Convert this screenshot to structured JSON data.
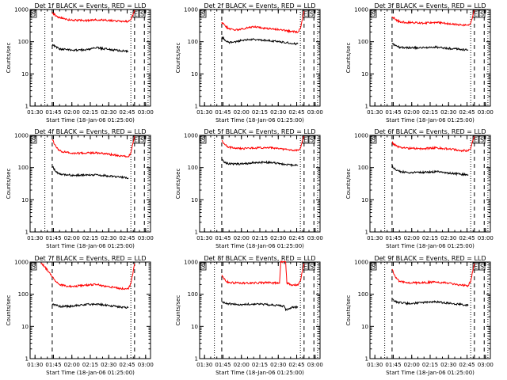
{
  "figure": {
    "panels_per_row": 3
  },
  "colors": {
    "events": "#000000",
    "lld": "#ff0000",
    "axes": "#000000",
    "background": "#ffffff"
  },
  "chart_data": [
    {
      "type": "line",
      "title": "Det 1f BLACK = Events, RED = LLD",
      "xlabel": "Start Time (18-Jan-06 01:25:00)",
      "ylabel": "Counts/sec",
      "yscale": "log",
      "ylim": [
        1,
        1000
      ],
      "yticks": [
        "1",
        "10",
        "100",
        "1000"
      ],
      "xlim": [
        "01:26",
        "03:04"
      ],
      "xticks": [
        "01:30",
        "01:45",
        "02:00",
        "02:15",
        "02:30",
        "02:45",
        "03:00"
      ],
      "flags": [
        "S",
        "E",
        "S"
      ],
      "markers": [
        {
          "time": "01:38",
          "style": "dotted"
        },
        {
          "time": "01:44",
          "style": "dashed"
        },
        {
          "time": "02:48",
          "style": "dotted"
        },
        {
          "time": "02:51",
          "style": "dashed"
        },
        {
          "time": "02:59",
          "style": "dashed"
        },
        {
          "time": "03:02",
          "style": "dotted"
        }
      ],
      "series": [
        {
          "legend": "RED = LLD",
          "x": [
            "01:44",
            "01:47",
            "01:50",
            "01:55",
            "02:00",
            "02:10",
            "02:20",
            "02:30",
            "02:40",
            "02:46",
            "02:48",
            "02:50",
            "02:51"
          ],
          "y": [
            800,
            630,
            560,
            500,
            470,
            450,
            480,
            460,
            430,
            420,
            480,
            750,
            950
          ]
        },
        {
          "legend": "BLACK = Events",
          "x": [
            "01:44",
            "01:47",
            "01:50",
            "01:55",
            "02:00",
            "02:10",
            "02:20",
            "02:30",
            "02:40",
            "02:46"
          ],
          "y": [
            80,
            70,
            60,
            58,
            55,
            55,
            65,
            58,
            52,
            50
          ]
        }
      ]
    },
    {
      "type": "line",
      "title": "Det 2f BLACK = Events, RED = LLD",
      "xlabel": "Start Time (18-Jan-06 01:25:00)",
      "ylabel": "Counts/sec",
      "yscale": "log",
      "ylim": [
        1,
        1000
      ],
      "yticks": [
        "1",
        "10",
        "100",
        "1000"
      ],
      "xlim": [
        "01:26",
        "03:04"
      ],
      "xticks": [
        "01:30",
        "01:45",
        "02:00",
        "02:15",
        "02:30",
        "02:45",
        "03:00"
      ],
      "flags": [
        "S",
        "E",
        "S"
      ],
      "markers": [
        {
          "time": "01:38",
          "style": "dotted"
        },
        {
          "time": "01:44",
          "style": "dashed"
        },
        {
          "time": "02:48",
          "style": "dotted"
        },
        {
          "time": "02:51",
          "style": "dashed"
        },
        {
          "time": "02:59",
          "style": "dashed"
        },
        {
          "time": "03:02",
          "style": "dotted"
        }
      ],
      "series": [
        {
          "legend": "RED = LLD",
          "x": [
            "01:44",
            "01:47",
            "01:50",
            "01:55",
            "02:00",
            "02:10",
            "02:20",
            "02:30",
            "02:40",
            "02:46",
            "02:48",
            "02:50",
            "02:51"
          ],
          "y": [
            400,
            300,
            250,
            230,
            250,
            290,
            260,
            240,
            210,
            200,
            260,
            600,
            900
          ]
        },
        {
          "legend": "BLACK = Events",
          "x": [
            "01:44",
            "01:47",
            "01:50",
            "01:55",
            "02:00",
            "02:10",
            "02:20",
            "02:30",
            "02:40",
            "02:46"
          ],
          "y": [
            140,
            110,
            95,
            100,
            110,
            120,
            110,
            100,
            90,
            85
          ]
        }
      ]
    },
    {
      "type": "line",
      "title": "Det 3f BLACK = Events, RED = LLD",
      "xlabel": "Start Time (18-Jan-06 01:25:00)",
      "ylabel": "Counts/sec",
      "yscale": "log",
      "ylim": [
        1,
        1000
      ],
      "yticks": [
        "1",
        "10",
        "100",
        "1000"
      ],
      "xlim": [
        "01:26",
        "03:04"
      ],
      "xticks": [
        "01:30",
        "01:45",
        "02:00",
        "02:15",
        "02:30",
        "02:45",
        "03:00"
      ],
      "flags": [
        "S",
        "E",
        "S"
      ],
      "markers": [
        {
          "time": "01:38",
          "style": "dotted"
        },
        {
          "time": "01:44",
          "style": "dashed"
        },
        {
          "time": "02:48",
          "style": "dotted"
        },
        {
          "time": "02:51",
          "style": "dashed"
        },
        {
          "time": "02:59",
          "style": "dashed"
        },
        {
          "time": "03:02",
          "style": "dotted"
        }
      ],
      "series": [
        {
          "legend": "RED = LLD",
          "x": [
            "01:44",
            "01:47",
            "01:50",
            "01:55",
            "02:00",
            "02:10",
            "02:20",
            "02:30",
            "02:40",
            "02:46",
            "02:48",
            "02:50",
            "02:51"
          ],
          "y": [
            600,
            480,
            420,
            400,
            390,
            380,
            400,
            360,
            330,
            320,
            380,
            700,
            950
          ]
        },
        {
          "legend": "BLACK = Events",
          "x": [
            "01:44",
            "01:47",
            "01:50",
            "01:55",
            "02:00",
            "02:10",
            "02:20",
            "02:30",
            "02:40",
            "02:46"
          ],
          "y": [
            90,
            75,
            68,
            65,
            65,
            65,
            68,
            62,
            58,
            55
          ]
        }
      ]
    },
    {
      "type": "line",
      "title": "Det 4f BLACK = Events, RED = LLD",
      "xlabel": "Start Time (18-Jan-06 01:25:00)",
      "ylabel": "Counts/sec",
      "yscale": "log",
      "ylim": [
        1,
        1000
      ],
      "yticks": [
        "1",
        "10",
        "100",
        "1000"
      ],
      "xlim": [
        "01:26",
        "03:04"
      ],
      "xticks": [
        "01:30",
        "01:45",
        "02:00",
        "02:15",
        "02:30",
        "02:45",
        "03:00"
      ],
      "flags": [
        "S",
        "E",
        "S"
      ],
      "markers": [
        {
          "time": "01:38",
          "style": "dotted"
        },
        {
          "time": "01:44",
          "style": "dashed"
        },
        {
          "time": "02:48",
          "style": "dotted"
        },
        {
          "time": "02:51",
          "style": "dashed"
        },
        {
          "time": "02:59",
          "style": "dashed"
        },
        {
          "time": "03:02",
          "style": "dotted"
        }
      ],
      "series": [
        {
          "legend": "RED = LLD",
          "x": [
            "01:44",
            "01:47",
            "01:50",
            "01:55",
            "02:00",
            "02:10",
            "02:20",
            "02:30",
            "02:40",
            "02:46",
            "02:48",
            "02:50",
            "02:51"
          ],
          "y": [
            750,
            450,
            330,
            300,
            280,
            280,
            290,
            260,
            230,
            220,
            280,
            650,
            950
          ]
        },
        {
          "legend": "BLACK = Events",
          "x": [
            "01:44",
            "01:47",
            "01:50",
            "01:55",
            "02:00",
            "02:10",
            "02:20",
            "02:30",
            "02:40",
            "02:46"
          ],
          "y": [
            110,
            75,
            62,
            60,
            58,
            58,
            60,
            55,
            50,
            48
          ]
        }
      ]
    },
    {
      "type": "line",
      "title": "Det 5f BLACK = Events, RED = LLD",
      "xlabel": "Start Time (18-Jan-06 01:25:00)",
      "ylabel": "Counts/sec",
      "yscale": "log",
      "ylim": [
        1,
        1000
      ],
      "yticks": [
        "1",
        "10",
        "100",
        "1000"
      ],
      "xlim": [
        "01:26",
        "03:04"
      ],
      "xticks": [
        "01:30",
        "01:45",
        "02:00",
        "02:15",
        "02:30",
        "02:45",
        "03:00"
      ],
      "flags": [
        "S",
        "E",
        "S"
      ],
      "markers": [
        {
          "time": "01:38",
          "style": "dotted"
        },
        {
          "time": "01:44",
          "style": "dashed"
        },
        {
          "time": "02:48",
          "style": "dotted"
        },
        {
          "time": "02:51",
          "style": "dashed"
        },
        {
          "time": "02:59",
          "style": "dashed"
        },
        {
          "time": "03:02",
          "style": "dotted"
        }
      ],
      "series": [
        {
          "legend": "RED = LLD",
          "x": [
            "01:44",
            "01:47",
            "01:50",
            "01:55",
            "02:00",
            "02:10",
            "02:20",
            "02:30",
            "02:40",
            "02:46",
            "02:48",
            "02:50",
            "02:51"
          ],
          "y": [
            700,
            500,
            430,
            400,
            390,
            400,
            420,
            390,
            350,
            340,
            400,
            750,
            950
          ]
        },
        {
          "legend": "BLACK = Events",
          "x": [
            "01:44",
            "01:47",
            "01:50",
            "01:55",
            "02:00",
            "02:10",
            "02:20",
            "02:30",
            "02:40",
            "02:46"
          ],
          "y": [
            180,
            140,
            130,
            130,
            130,
            140,
            145,
            135,
            120,
            115
          ]
        }
      ]
    },
    {
      "type": "line",
      "title": "Det 6f BLACK = Events, RED = LLD",
      "xlabel": "Start Time (18-Jan-06 01:25:00)",
      "ylabel": "Counts/sec",
      "yscale": "log",
      "ylim": [
        1,
        1000
      ],
      "yticks": [
        "1",
        "10",
        "100",
        "1000"
      ],
      "xlim": [
        "01:26",
        "03:04"
      ],
      "xticks": [
        "01:30",
        "01:45",
        "02:00",
        "02:15",
        "02:30",
        "02:45",
        "03:00"
      ],
      "flags": [
        "S",
        "E",
        "S"
      ],
      "markers": [
        {
          "time": "01:38",
          "style": "dotted"
        },
        {
          "time": "01:44",
          "style": "dashed"
        },
        {
          "time": "02:48",
          "style": "dotted"
        },
        {
          "time": "02:51",
          "style": "dashed"
        },
        {
          "time": "02:59",
          "style": "dashed"
        },
        {
          "time": "03:02",
          "style": "dotted"
        }
      ],
      "series": [
        {
          "legend": "RED = LLD",
          "x": [
            "01:44",
            "01:47",
            "01:50",
            "01:55",
            "02:00",
            "02:10",
            "02:20",
            "02:30",
            "02:40",
            "02:46",
            "02:48",
            "02:50",
            "02:51"
          ],
          "y": [
            600,
            480,
            430,
            400,
            390,
            390,
            410,
            380,
            340,
            330,
            390,
            720,
            950
          ]
        },
        {
          "legend": "BLACK = Events",
          "x": [
            "01:44",
            "01:47",
            "01:50",
            "01:55",
            "02:00",
            "02:10",
            "02:20",
            "02:30",
            "02:40",
            "02:46"
          ],
          "y": [
            110,
            85,
            75,
            72,
            70,
            72,
            75,
            68,
            62,
            60
          ]
        }
      ]
    },
    {
      "type": "line",
      "title": "Det 7f BLACK = Events, RED = LLD",
      "xlabel": "Start Time (18-Jan-06 01:25:00)",
      "ylabel": "Counts/sec",
      "yscale": "log",
      "ylim": [
        1,
        1000
      ],
      "yticks": [
        "1",
        "10",
        "100",
        "1000"
      ],
      "xlim": [
        "01:26",
        "03:04"
      ],
      "xticks": [
        "01:30",
        "01:45",
        "02:00",
        "02:15",
        "02:30",
        "02:45",
        "03:00"
      ],
      "flags": [
        "S"
      ],
      "markers": [
        {
          "time": "01:44",
          "style": "dashed"
        },
        {
          "time": "02:48",
          "style": "dotted"
        },
        {
          "time": "02:51",
          "style": "dashed"
        }
      ],
      "series": [
        {
          "legend": "RED = LLD",
          "x": [
            "01:35",
            "01:38",
            "01:41",
            "01:44",
            "01:47",
            "01:50",
            "01:55",
            "02:00",
            "02:10",
            "02:20",
            "02:30",
            "02:40",
            "02:46",
            "02:48",
            "02:50",
            "02:51"
          ],
          "y": [
            950,
            700,
            500,
            350,
            250,
            200,
            180,
            175,
            190,
            200,
            170,
            150,
            145,
            220,
            550,
            900
          ]
        },
        {
          "legend": "BLACK = Events",
          "x": [
            "01:44",
            "01:47",
            "01:50",
            "01:55",
            "02:00",
            "02:10",
            "02:20",
            "02:30",
            "02:40",
            "02:46"
          ],
          "y": [
            50,
            45,
            42,
            42,
            42,
            48,
            50,
            45,
            40,
            38
          ]
        }
      ]
    },
    {
      "type": "line",
      "title": "Det 8f BLACK = Events, RED = LLD",
      "xlabel": "Start Time (18-Jan-06 01:25:00)",
      "ylabel": "Counts/sec",
      "yscale": "log",
      "ylim": [
        1,
        1000
      ],
      "yticks": [
        "1",
        "10",
        "100",
        "1000"
      ],
      "xlim": [
        "01:26",
        "03:04"
      ],
      "xticks": [
        "01:30",
        "01:45",
        "02:00",
        "02:15",
        "02:30",
        "02:45",
        "03:00"
      ],
      "flags": [
        "S",
        "E",
        "S"
      ],
      "markers": [
        {
          "time": "01:38",
          "style": "dotted"
        },
        {
          "time": "01:44",
          "style": "dashed"
        },
        {
          "time": "02:48",
          "style": "dotted"
        },
        {
          "time": "02:51",
          "style": "dashed"
        },
        {
          "time": "02:59",
          "style": "dashed"
        },
        {
          "time": "03:02",
          "style": "dotted"
        }
      ],
      "series": [
        {
          "legend": "RED = LLD",
          "x": [
            "01:44",
            "01:47",
            "01:50",
            "02:00",
            "02:10",
            "02:20",
            "02:31",
            "02:32",
            "02:36",
            "02:37",
            "02:40",
            "02:46",
            "02:48",
            "02:50",
            "02:51"
          ],
          "y": [
            400,
            260,
            230,
            220,
            225,
            230,
            220,
            1000,
            1000,
            220,
            200,
            190,
            260,
            600,
            900
          ]
        },
        {
          "legend": "BLACK = Events",
          "x": [
            "01:44",
            "01:47",
            "01:50",
            "02:00",
            "02:10",
            "02:20",
            "02:30",
            "02:35",
            "02:36",
            "02:40",
            "02:46"
          ],
          "y": [
            60,
            52,
            50,
            48,
            50,
            48,
            45,
            42,
            32,
            38,
            40
          ]
        }
      ]
    },
    {
      "type": "line",
      "title": "Det 9f BLACK = Events, RED = LLD",
      "xlabel": "Start Time (18-Jan-06 01:25:00)",
      "ylabel": "Counts/sec",
      "yscale": "log",
      "ylim": [
        1,
        1000
      ],
      "yticks": [
        "1",
        "10",
        "100",
        "1000"
      ],
      "xlim": [
        "01:26",
        "03:04"
      ],
      "xticks": [
        "01:30",
        "01:45",
        "02:00",
        "02:15",
        "02:30",
        "02:45",
        "03:00"
      ],
      "flags": [
        "S",
        "E",
        "S"
      ],
      "markers": [
        {
          "time": "01:38",
          "style": "dotted"
        },
        {
          "time": "01:44",
          "style": "dashed"
        },
        {
          "time": "02:48",
          "style": "dotted"
        },
        {
          "time": "02:51",
          "style": "dashed"
        },
        {
          "time": "02:59",
          "style": "dashed"
        },
        {
          "time": "03:02",
          "style": "dotted"
        }
      ],
      "series": [
        {
          "legend": "RED = LLD",
          "x": [
            "01:44",
            "01:47",
            "01:50",
            "01:55",
            "02:00",
            "02:10",
            "02:20",
            "02:30",
            "02:40",
            "02:46",
            "02:48",
            "02:50",
            "02:51"
          ],
          "y": [
            600,
            320,
            250,
            230,
            225,
            230,
            240,
            220,
            190,
            185,
            250,
            600,
            900
          ]
        },
        {
          "legend": "BLACK = Events",
          "x": [
            "01:44",
            "01:47",
            "01:50",
            "01:55",
            "02:00",
            "02:10",
            "02:20",
            "02:30",
            "02:40",
            "02:46"
          ],
          "y": [
            70,
            58,
            55,
            52,
            52,
            55,
            58,
            52,
            48,
            45
          ]
        }
      ]
    }
  ]
}
